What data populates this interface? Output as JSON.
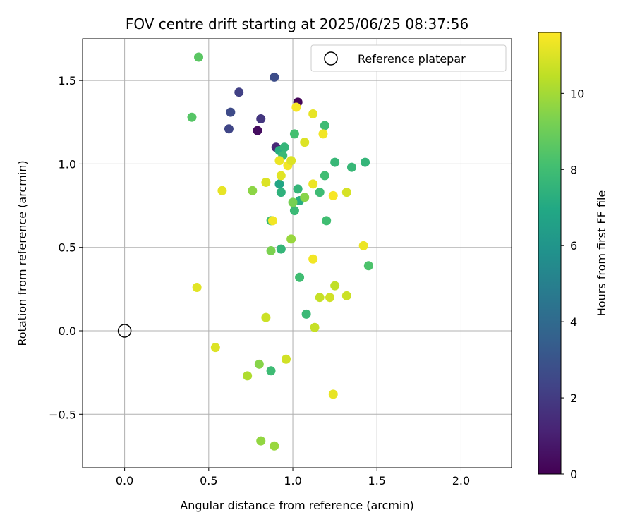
{
  "chart_data": {
    "type": "scatter",
    "title": "FOV centre drift starting at 2025/06/25 08:37:56",
    "xlabel": "Angular distance from reference (arcmin)",
    "ylabel": "Rotation from reference (arcmin)",
    "xlim": [
      -0.25,
      2.3
    ],
    "ylim": [
      -0.82,
      1.75
    ],
    "xticks": [
      0.0,
      0.5,
      1.0,
      1.5,
      2.0
    ],
    "xtick_labels": [
      "0.0",
      "0.5",
      "1.0",
      "1.5",
      "2.0"
    ],
    "yticks": [
      -0.5,
      0.0,
      0.5,
      1.0,
      1.5
    ],
    "ytick_labels": [
      "−0.5",
      "0.0",
      "0.5",
      "1.0",
      "1.5"
    ],
    "grid": true,
    "legend": {
      "position": "top-right",
      "entries": [
        "Reference platepar"
      ]
    },
    "reference": {
      "x": 0.0,
      "y": 0.0,
      "marker": "open-circle",
      "color": "#000000"
    },
    "colorbar": {
      "label": "Hours from first FF file",
      "range": [
        0,
        11.6
      ],
      "ticks": [
        0,
        2,
        4,
        6,
        8,
        10
      ],
      "tick_labels": [
        "0",
        "2",
        "4",
        "6",
        "8",
        "10"
      ],
      "colormap": "viridis"
    },
    "points": [
      {
        "x": 1.03,
        "y": 1.37,
        "h": 0.2
      },
      {
        "x": 0.79,
        "y": 1.2,
        "h": 0.4
      },
      {
        "x": 0.9,
        "y": 1.1,
        "h": 1.3
      },
      {
        "x": 0.81,
        "y": 1.27,
        "h": 1.8
      },
      {
        "x": 0.68,
        "y": 1.43,
        "h": 2.2
      },
      {
        "x": 0.89,
        "y": 1.52,
        "h": 2.7
      },
      {
        "x": 0.63,
        "y": 1.31,
        "h": 2.6
      },
      {
        "x": 0.62,
        "y": 1.21,
        "h": 2.4
      },
      {
        "x": 0.92,
        "y": 1.08,
        "h": 7.2
      },
      {
        "x": 0.95,
        "y": 1.1,
        "h": 7.6
      },
      {
        "x": 0.94,
        "y": 1.05,
        "h": 7.8
      },
      {
        "x": 0.92,
        "y": 0.88,
        "h": 6.8
      },
      {
        "x": 0.93,
        "y": 0.83,
        "h": 7.4
      },
      {
        "x": 1.03,
        "y": 0.85,
        "h": 7.6
      },
      {
        "x": 1.04,
        "y": 0.78,
        "h": 7.2
      },
      {
        "x": 1.01,
        "y": 0.72,
        "h": 7.8
      },
      {
        "x": 0.87,
        "y": 0.66,
        "h": 7.9
      },
      {
        "x": 0.93,
        "y": 0.49,
        "h": 7.6
      },
      {
        "x": 1.04,
        "y": 0.32,
        "h": 8.0
      },
      {
        "x": 1.08,
        "y": 0.1,
        "h": 7.8
      },
      {
        "x": 0.87,
        "y": -0.24,
        "h": 7.9
      },
      {
        "x": 1.16,
        "y": 0.83,
        "h": 7.9
      },
      {
        "x": 1.19,
        "y": 0.93,
        "h": 8.0
      },
      {
        "x": 1.25,
        "y": 1.01,
        "h": 7.7
      },
      {
        "x": 1.19,
        "y": 1.23,
        "h": 7.9
      },
      {
        "x": 1.01,
        "y": 1.18,
        "h": 8.1
      },
      {
        "x": 1.35,
        "y": 0.98,
        "h": 7.7
      },
      {
        "x": 1.43,
        "y": 1.01,
        "h": 7.6
      },
      {
        "x": 1.2,
        "y": 0.66,
        "h": 8.0
      },
      {
        "x": 1.45,
        "y": 0.39,
        "h": 8.3
      },
      {
        "x": 0.4,
        "y": 1.28,
        "h": 8.5
      },
      {
        "x": 0.44,
        "y": 1.64,
        "h": 8.6
      },
      {
        "x": 1.0,
        "y": 0.77,
        "h": 9.2
      },
      {
        "x": 1.07,
        "y": 0.8,
        "h": 9.5
      },
      {
        "x": 0.76,
        "y": 0.84,
        "h": 9.6
      },
      {
        "x": 0.87,
        "y": 0.48,
        "h": 9.3
      },
      {
        "x": 0.99,
        "y": 0.55,
        "h": 9.8
      },
      {
        "x": 0.8,
        "y": -0.2,
        "h": 9.5
      },
      {
        "x": 0.73,
        "y": -0.27,
        "h": 10.2
      },
      {
        "x": 0.81,
        "y": -0.66,
        "h": 9.7
      },
      {
        "x": 0.89,
        "y": -0.69,
        "h": 9.8
      },
      {
        "x": 0.96,
        "y": -0.17,
        "h": 10.8
      },
      {
        "x": 0.84,
        "y": 0.08,
        "h": 10.7
      },
      {
        "x": 1.13,
        "y": 0.02,
        "h": 10.6
      },
      {
        "x": 1.16,
        "y": 0.2,
        "h": 10.6
      },
      {
        "x": 1.25,
        "y": 0.27,
        "h": 10.5
      },
      {
        "x": 1.22,
        "y": 0.2,
        "h": 10.8
      },
      {
        "x": 1.32,
        "y": 0.21,
        "h": 10.7
      },
      {
        "x": 1.24,
        "y": -0.38,
        "h": 11.2
      },
      {
        "x": 0.54,
        "y": -0.1,
        "h": 11.0
      },
      {
        "x": 0.43,
        "y": 0.26,
        "h": 11.1
      },
      {
        "x": 0.58,
        "y": 0.84,
        "h": 11.2
      },
      {
        "x": 0.84,
        "y": 0.89,
        "h": 11.0
      },
      {
        "x": 0.92,
        "y": 1.02,
        "h": 11.3
      },
      {
        "x": 0.93,
        "y": 0.93,
        "h": 11.1
      },
      {
        "x": 0.97,
        "y": 0.99,
        "h": 11.4
      },
      {
        "x": 0.99,
        "y": 1.02,
        "h": 11.0
      },
      {
        "x": 1.02,
        "y": 1.34,
        "h": 11.5
      },
      {
        "x": 1.12,
        "y": 1.3,
        "h": 11.2
      },
      {
        "x": 1.18,
        "y": 1.18,
        "h": 11.4
      },
      {
        "x": 1.07,
        "y": 1.13,
        "h": 11.0
      },
      {
        "x": 1.12,
        "y": 0.88,
        "h": 11.3
      },
      {
        "x": 1.24,
        "y": 0.81,
        "h": 11.5
      },
      {
        "x": 1.32,
        "y": 0.83,
        "h": 10.9
      },
      {
        "x": 0.88,
        "y": 0.66,
        "h": 11.4
      },
      {
        "x": 1.12,
        "y": 0.43,
        "h": 11.4
      },
      {
        "x": 1.42,
        "y": 0.51,
        "h": 11.3
      }
    ]
  }
}
